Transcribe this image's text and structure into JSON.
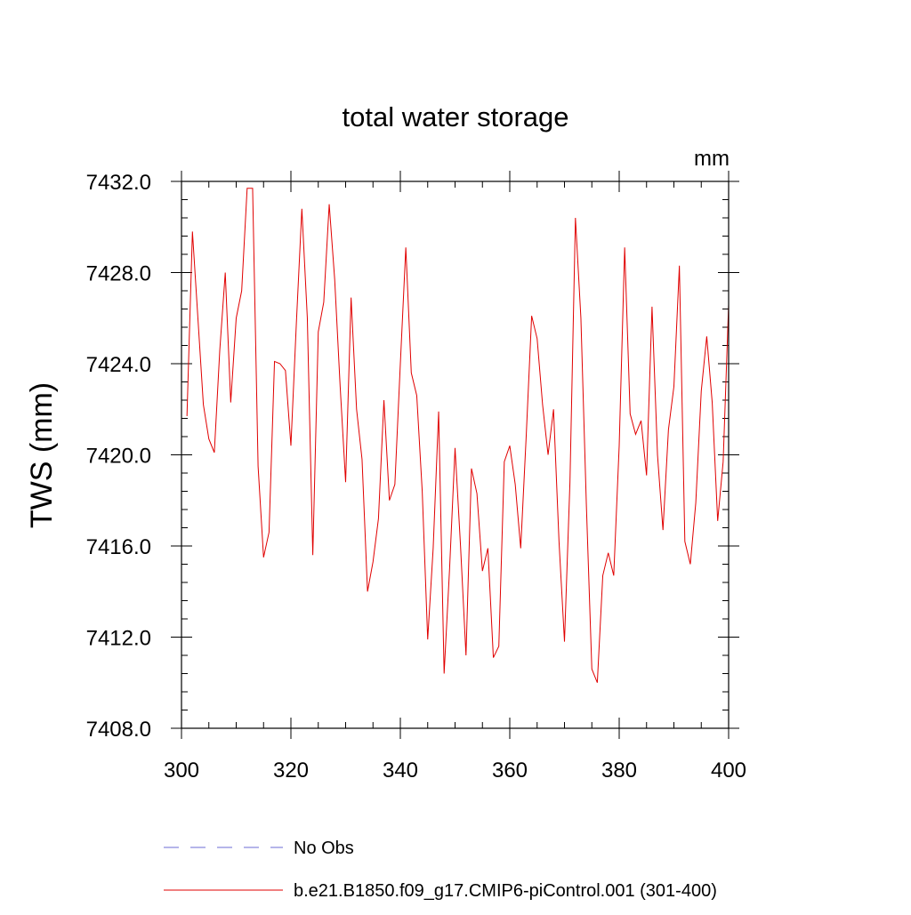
{
  "chart_data": {
    "type": "line",
    "title": "total water storage",
    "units": "mm",
    "xlabel": "",
    "ylabel": "TWS  (mm)",
    "xlim": [
      300,
      400
    ],
    "ylim": [
      7408.0,
      7432.0
    ],
    "x_ticks": [
      300,
      320,
      340,
      360,
      380,
      400
    ],
    "x_tick_labels": [
      "300",
      "320",
      "340",
      "360",
      "380",
      "400"
    ],
    "y_ticks": [
      7408.0,
      7412.0,
      7416.0,
      7420.0,
      7424.0,
      7428.0,
      7432.0
    ],
    "y_tick_labels": [
      "7408.0",
      "7412.0",
      "7416.0",
      "7420.0",
      "7424.0",
      "7428.0",
      "7432.0"
    ],
    "legend": [
      {
        "label": "No Obs",
        "color": "#6b6bd6",
        "style": "dashed"
      },
      {
        "label": "b.e21.B1850.f09_g17.CMIP6-piControl.001 (301-400)",
        "color": "#e00000",
        "style": "solid"
      }
    ],
    "series": [
      {
        "name": "b.e21.B1850.f09_g17.CMIP6-piControl.001 (301-400)",
        "color": "#e00000",
        "x": [
          301,
          302,
          303,
          304,
          305,
          306,
          307,
          308,
          309,
          310,
          311,
          312,
          313,
          314,
          315,
          316,
          317,
          318,
          319,
          320,
          321,
          322,
          323,
          324,
          325,
          326,
          327,
          328,
          329,
          330,
          331,
          332,
          333,
          334,
          335,
          336,
          337,
          338,
          339,
          340,
          341,
          342,
          343,
          344,
          345,
          346,
          347,
          348,
          349,
          350,
          351,
          352,
          353,
          354,
          355,
          356,
          357,
          358,
          359,
          360,
          361,
          362,
          363,
          364,
          365,
          366,
          367,
          368,
          369,
          370,
          371,
          372,
          373,
          374,
          375,
          376,
          377,
          378,
          379,
          380,
          381,
          382,
          383,
          384,
          385,
          386,
          387,
          388,
          389,
          390,
          391,
          392,
          393,
          394,
          395,
          396,
          397,
          398,
          399,
          400
        ],
        "values": [
          7421.7,
          7429.8,
          7426.0,
          7422.2,
          7420.7,
          7420.1,
          7424.6,
          7428.0,
          7422.3,
          7426.0,
          7427.2,
          7431.7,
          7431.7,
          7419.5,
          7415.5,
          7416.6,
          7424.1,
          7424.0,
          7423.7,
          7420.4,
          7425.8,
          7430.8,
          7426.0,
          7415.6,
          7425.4,
          7426.7,
          7431.0,
          7427.7,
          7423.0,
          7418.8,
          7426.9,
          7422.0,
          7419.8,
          7414.0,
          7415.3,
          7417.2,
          7422.4,
          7418.0,
          7418.7,
          7424.0,
          7429.1,
          7423.6,
          7422.6,
          7418.4,
          7411.9,
          7415.9,
          7421.9,
          7410.4,
          7415.0,
          7420.3,
          7416.0,
          7411.2,
          7419.4,
          7418.3,
          7414.9,
          7415.9,
          7411.1,
          7411.6,
          7419.7,
          7420.4,
          7418.7,
          7415.9,
          7420.8,
          7426.1,
          7425.1,
          7422.2,
          7420.0,
          7422.0,
          7416.2,
          7411.8,
          7418.8,
          7430.4,
          7426.0,
          7417.8,
          7410.6,
          7410.0,
          7414.7,
          7415.7,
          7414.7,
          7420.4,
          7429.1,
          7421.8,
          7420.9,
          7421.5,
          7419.1,
          7426.5,
          7420.0,
          7416.7,
          7421.1,
          7423.0,
          7428.3,
          7416.2,
          7415.2,
          7417.9,
          7422.8,
          7425.2,
          7422.3,
          7417.1,
          7419.7,
          7426.6
        ]
      }
    ]
  }
}
